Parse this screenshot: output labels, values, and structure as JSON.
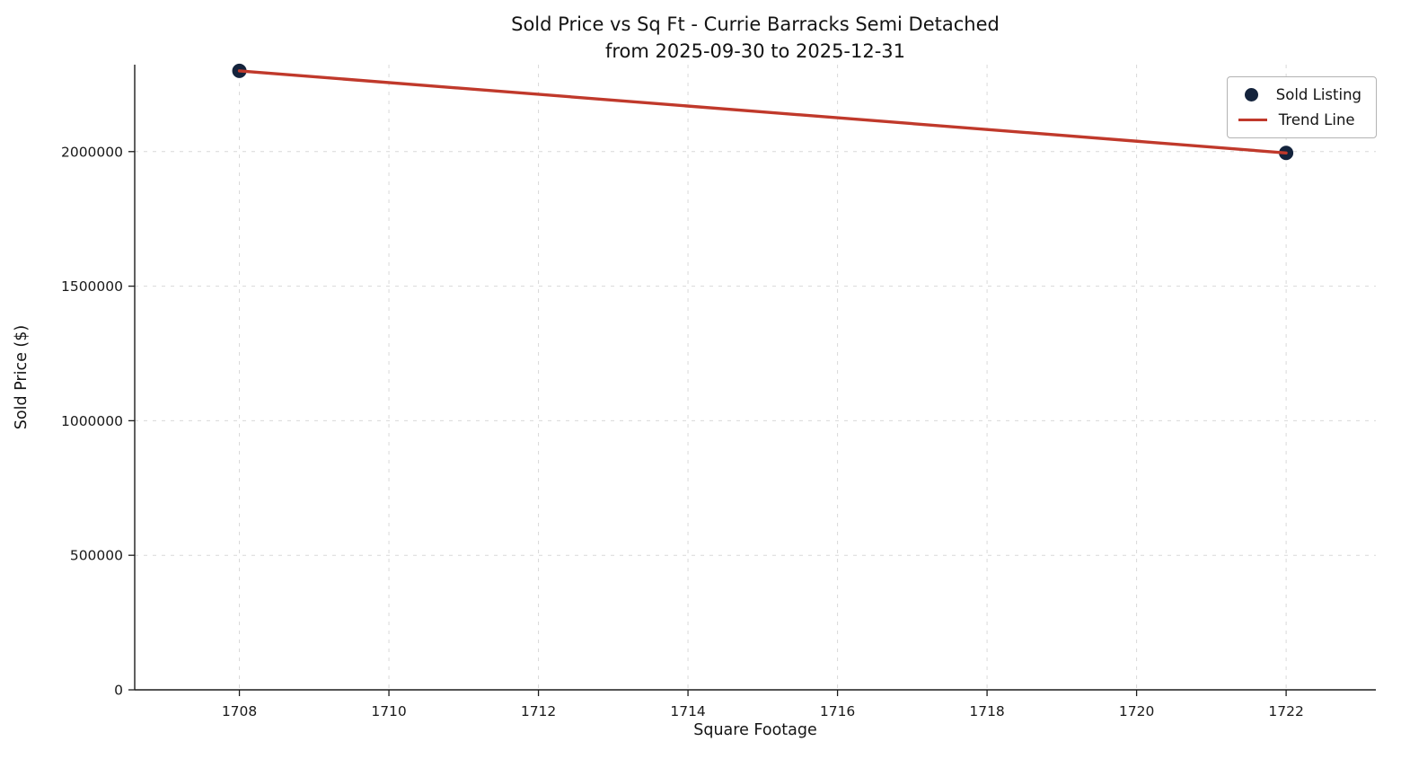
{
  "chart_data": {
    "type": "scatter",
    "title": "Sold Price vs Sq Ft - Currie Barracks Semi Detached",
    "subtitle": "from 2025-09-30 to 2025-12-31",
    "xlabel": "Square Footage",
    "ylabel": "Sold Price ($)",
    "xlim": [
      1706.6,
      1723.2
    ],
    "ylim": [
      0,
      2323000
    ],
    "x_ticks": [
      1708,
      1710,
      1712,
      1714,
      1716,
      1718,
      1720,
      1722
    ],
    "y_ticks": [
      0,
      500000,
      1000000,
      1500000,
      2000000
    ],
    "grid": true,
    "grid_style": "dashed",
    "legend_position": "upper right",
    "series": [
      {
        "name": "Sold Listing",
        "type": "scatter",
        "color": "#14233c",
        "points": [
          {
            "x": 1708,
            "y": 2300000
          },
          {
            "x": 1722,
            "y": 1995000
          }
        ]
      },
      {
        "name": "Trend Line",
        "type": "line",
        "color": "#c0392b",
        "points": [
          {
            "x": 1708,
            "y": 2300000
          },
          {
            "x": 1722,
            "y": 1995000
          }
        ]
      }
    ]
  },
  "colors": {
    "background": "#ffffff",
    "grid": "#d9d9d9",
    "spine": "#1c1c1c",
    "text": "#141414"
  }
}
